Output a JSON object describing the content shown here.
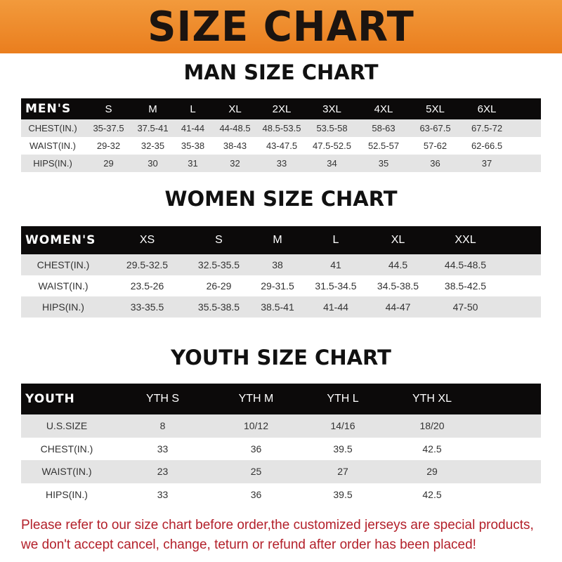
{
  "title": "SIZE CHART",
  "colors": {
    "banner": "#ef8a2a",
    "header_row": "#0c0a0a",
    "note": "#b3202a"
  },
  "men": {
    "title": "MAN SIZE CHART",
    "header": [
      "MEN'S",
      "S",
      "M",
      "L",
      "XL",
      "2XL",
      "3XL",
      "4XL",
      "5XL",
      "6XL"
    ],
    "rows": [
      [
        "CHEST(IN.)",
        "35-37.5",
        "37.5-41",
        "41-44",
        "44-48.5",
        "48.5-53.5",
        "53.5-58",
        "58-63",
        "63-67.5",
        "67.5-72"
      ],
      [
        "WAIST(IN.)",
        "29-32",
        "32-35",
        "35-38",
        "38-43",
        "43-47.5",
        "47.5-52.5",
        "52.5-57",
        "57-62",
        "62-66.5"
      ],
      [
        "HIPS(IN.)",
        "29",
        "30",
        "31",
        "32",
        "33",
        "34",
        "35",
        "36",
        "37"
      ]
    ]
  },
  "women": {
    "title": "WOMEN SIZE CHART",
    "header": [
      "WOMEN'S",
      "XS",
      "S",
      "M",
      "L",
      "XL",
      "XXL"
    ],
    "rows": [
      [
        "CHEST(IN.)",
        "29.5-32.5",
        "32.5-35.5",
        "38",
        "41",
        "44.5",
        "44.5-48.5"
      ],
      [
        "WAIST(IN.)",
        "23.5-26",
        "26-29",
        "29-31.5",
        "31.5-34.5",
        "34.5-38.5",
        "38.5-42.5"
      ],
      [
        "HIPS(IN.)",
        "33-35.5",
        "35.5-38.5",
        "38.5-41",
        "41-44",
        "44-47",
        "47-50"
      ]
    ]
  },
  "youth": {
    "title": "YOUTH SIZE CHART",
    "header": [
      "YOUTH",
      "YTH S",
      "YTH M",
      "YTH L",
      "YTH XL"
    ],
    "rows": [
      [
        "U.S.SIZE",
        "8",
        "10/12",
        "14/16",
        "18/20"
      ],
      [
        "CHEST(IN.)",
        "33",
        "36",
        "39.5",
        "42.5"
      ],
      [
        "WAIST(IN.)",
        "23",
        "25",
        "27",
        "29"
      ],
      [
        "HIPS(IN.)",
        "33",
        "36",
        "39.5",
        "42.5"
      ]
    ]
  },
  "note": {
    "line1": "Please refer to our size chart before order,the customized jerseys are special products,",
    "line2": "we don't accept cancel, change, teturn or refund after order has been placed!"
  }
}
